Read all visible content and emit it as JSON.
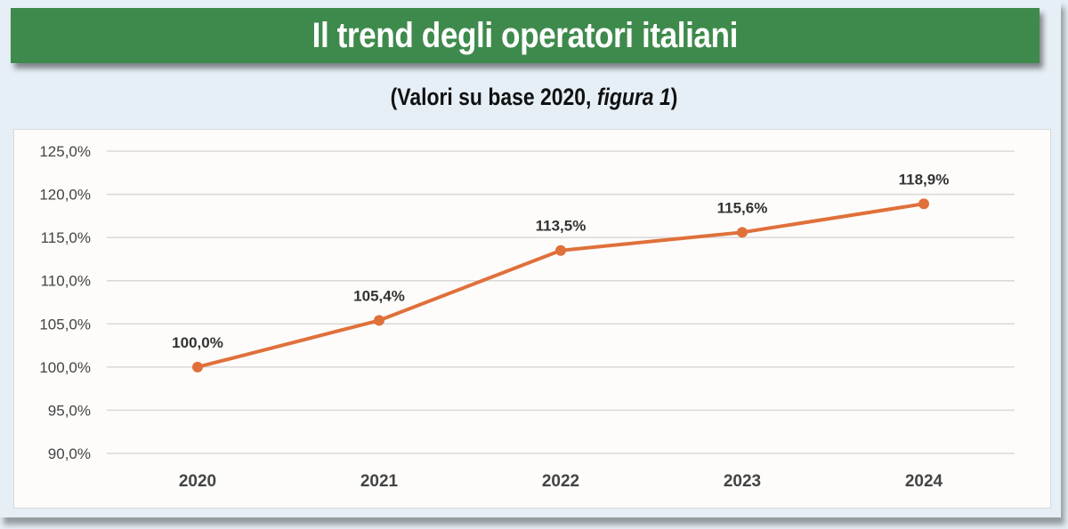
{
  "title": "Il trend degli operatori italiani",
  "subtitle_main": "(Valori su base 2020, ",
  "subtitle_italic": "figura 1",
  "subtitle_end": ")",
  "colors": {
    "banner": "#3e8a4c",
    "line": "#e0703a"
  },
  "chart_data": {
    "type": "line",
    "title": "Il trend degli operatori italiani",
    "subtitle": "(Valori su base 2020, figura 1)",
    "categories": [
      "2020",
      "2021",
      "2022",
      "2023",
      "2024"
    ],
    "values": [
      100.0,
      105.4,
      113.5,
      115.6,
      118.9
    ],
    "data_labels": [
      "100,0%",
      "105,4%",
      "113,5%",
      "115,6%",
      "118,9%"
    ],
    "ylim": [
      90,
      125
    ],
    "yticks": [
      90,
      95,
      100,
      105,
      110,
      115,
      120,
      125
    ],
    "ytick_labels": [
      "90,0%",
      "95,0%",
      "100,0%",
      "105,0%",
      "110,0%",
      "115,0%",
      "120,0%",
      "125,0%"
    ],
    "xlabel": "",
    "ylabel": "",
    "grid": true,
    "legend": "none"
  }
}
